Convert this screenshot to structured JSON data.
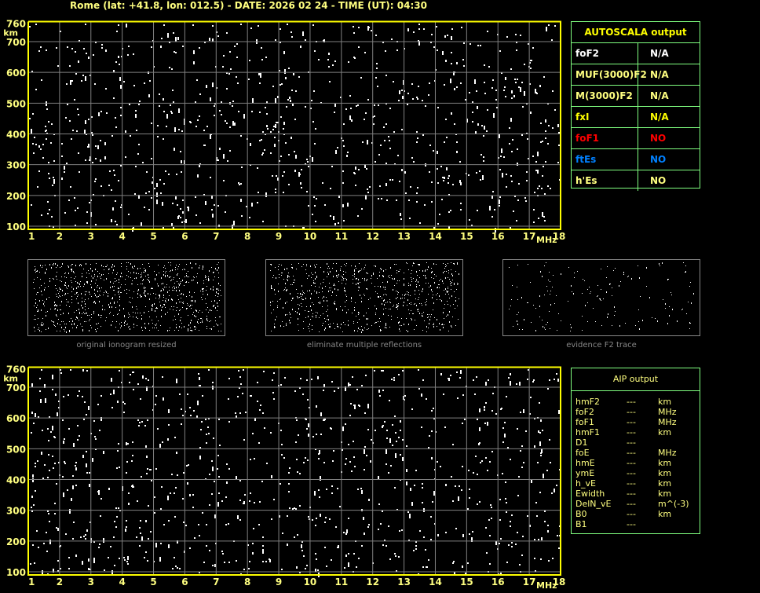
{
  "header": {
    "title": "Rome (lat: +41.8, lon: 012.5) - DATE: 2026 02 24 - TIME (UT): 04:30"
  },
  "plot": {
    "y_unit": "km",
    "x_unit": "MHz",
    "y_ticks": [
      "760",
      "700",
      "600",
      "500",
      "400",
      "300",
      "200",
      "100"
    ],
    "y_values": [
      760,
      700,
      600,
      500,
      400,
      300,
      200,
      100
    ],
    "x_ticks": [
      "1",
      "2",
      "3",
      "4",
      "5",
      "6",
      "7",
      "8",
      "9",
      "10",
      "11",
      "12",
      "13",
      "14",
      "15",
      "16",
      "17",
      "18"
    ],
    "axis_color": "#ffff00",
    "grid_color": "#808080"
  },
  "autoscala": {
    "title": "AUTOSCALA output",
    "rows": [
      {
        "label": "foF2",
        "value": "N/A",
        "label_color": "#ffffff",
        "value_color": "#ffffff"
      },
      {
        "label": "MUF(3000)F2",
        "value": "N/A",
        "label_color": "#ffff80",
        "value_color": "#ffff80"
      },
      {
        "label": "M(3000)F2",
        "value": "N/A",
        "label_color": "#ffff80",
        "value_color": "#ffff80"
      },
      {
        "label": "fxI",
        "value": "N/A",
        "label_color": "#ffff00",
        "value_color": "#ffff00"
      },
      {
        "label": "foF1",
        "value": "NO",
        "label_color": "#ff0000",
        "value_color": "#ff0000"
      },
      {
        "label": "ftEs",
        "value": "NO",
        "label_color": "#0080ff",
        "value_color": "#0080ff"
      },
      {
        "label": "h'Es",
        "value": "NO",
        "label_color": "#ffff80",
        "value_color": "#ffff80"
      }
    ]
  },
  "thumbnails": [
    {
      "caption": "original ionogram resized"
    },
    {
      "caption": "eliminate multiple reflections"
    },
    {
      "caption": "evidence F2 trace"
    }
  ],
  "aip": {
    "title": "AIP output",
    "rows": [
      {
        "param": "hmF2",
        "value": "---",
        "unit": "km"
      },
      {
        "param": "foF2",
        "value": "---",
        "unit": "MHz"
      },
      {
        "param": "foF1",
        "value": "---",
        "unit": "MHz"
      },
      {
        "param": "hmF1",
        "value": "---",
        "unit": "km"
      },
      {
        "param": "D1",
        "value": "---",
        "unit": ""
      },
      {
        "param": "foE",
        "value": "---",
        "unit": "MHz"
      },
      {
        "param": "hmE",
        "value": "---",
        "unit": "km"
      },
      {
        "param": "ymE",
        "value": "---",
        "unit": "km"
      },
      {
        "param": "h_vE",
        "value": "---",
        "unit": "km"
      },
      {
        "param": "Ewidth",
        "value": "---",
        "unit": "km"
      },
      {
        "param": "DelN_vE",
        "value": "---",
        "unit": "m^(-3)"
      },
      {
        "param": "B0",
        "value": "---",
        "unit": "km"
      },
      {
        "param": "B1",
        "value": "---",
        "unit": ""
      }
    ]
  }
}
